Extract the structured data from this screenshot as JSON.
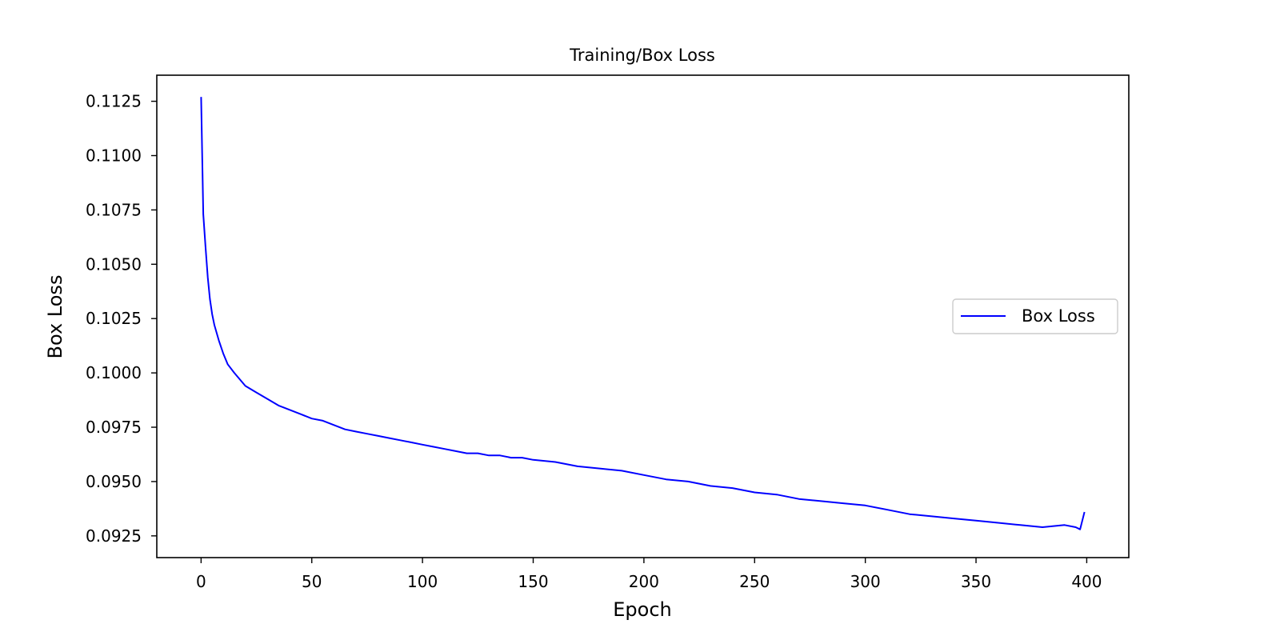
{
  "chart_data": {
    "type": "line",
    "title": "Training/Box Loss",
    "xlabel": "Epoch",
    "ylabel": "Box Loss",
    "xlim": [
      -20,
      419
    ],
    "ylim": [
      0.0915,
      0.1137
    ],
    "xticks": [
      0,
      50,
      100,
      150,
      200,
      250,
      300,
      350,
      400
    ],
    "xtick_labels": [
      "0",
      "50",
      "100",
      "150",
      "200",
      "250",
      "300",
      "350",
      "400"
    ],
    "yticks": [
      0.0925,
      0.095,
      0.0975,
      0.1,
      0.1025,
      0.105,
      0.1075,
      0.11,
      0.1125
    ],
    "ytick_labels": [
      "0.0925",
      "0.0950",
      "0.0975",
      "0.1000",
      "0.1025",
      "0.1050",
      "0.1075",
      "0.1100",
      "0.1125"
    ],
    "grid": false,
    "legend_position": "center-right",
    "series": [
      {
        "name": "Box Loss",
        "color": "#0000ff",
        "x": [
          0,
          1,
          2,
          3,
          4,
          5,
          6,
          8,
          10,
          12,
          15,
          20,
          25,
          30,
          35,
          40,
          45,
          50,
          55,
          60,
          65,
          70,
          75,
          80,
          85,
          90,
          95,
          100,
          105,
          110,
          115,
          120,
          125,
          130,
          135,
          140,
          145,
          150,
          160,
          170,
          180,
          190,
          200,
          210,
          220,
          230,
          240,
          250,
          260,
          270,
          280,
          290,
          300,
          310,
          320,
          330,
          340,
          350,
          360,
          370,
          380,
          390,
          395,
          397,
          399
        ],
        "values": [
          0.1127,
          0.1073,
          0.1058,
          0.1044,
          0.1034,
          0.1027,
          0.1022,
          0.1015,
          0.1009,
          0.1004,
          0.1,
          0.0994,
          0.0991,
          0.0988,
          0.0985,
          0.0983,
          0.0981,
          0.0979,
          0.0978,
          0.0976,
          0.0974,
          0.0973,
          0.0972,
          0.0971,
          0.097,
          0.0969,
          0.0968,
          0.0967,
          0.0966,
          0.0965,
          0.0964,
          0.0963,
          0.0963,
          0.0962,
          0.0962,
          0.0961,
          0.0961,
          0.096,
          0.0959,
          0.0957,
          0.0956,
          0.0955,
          0.0953,
          0.0951,
          0.095,
          0.0948,
          0.0947,
          0.0945,
          0.0944,
          0.0942,
          0.0941,
          0.094,
          0.0939,
          0.0937,
          0.0935,
          0.0934,
          0.0933,
          0.0932,
          0.0931,
          0.093,
          0.0929,
          0.093,
          0.0929,
          0.0928,
          0.0936
        ]
      }
    ]
  }
}
